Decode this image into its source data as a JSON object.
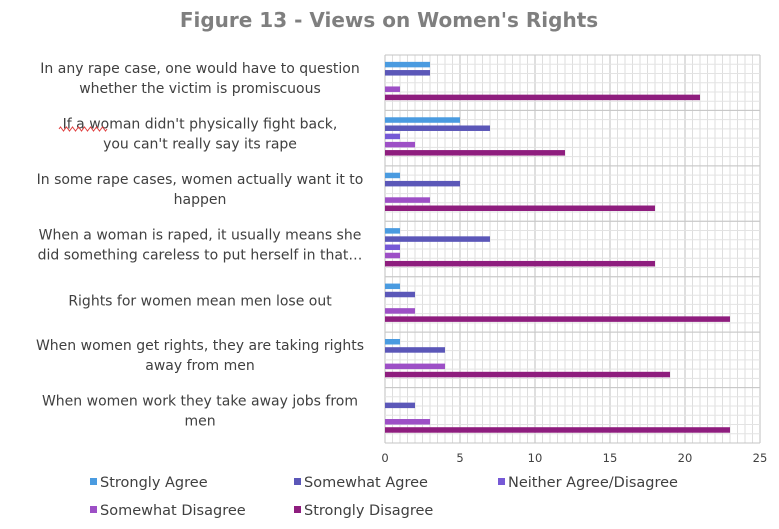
{
  "chart_data": {
    "type": "bar",
    "orientation": "horizontal",
    "title": "Figure 13 - Views on Women's Rights",
    "categories": [
      [
        "In any rape case, one would have to question",
        "whether the victim is promiscuous"
      ],
      [
        "If  a woman didn't physically fight back,",
        "you can't really say its rape"
      ],
      [
        "In some rape cases, women actually want it to",
        "happen"
      ],
      [
        "When a woman is raped, it usually means she",
        "did something careless to put herself in that…"
      ],
      [
        "Rights for women mean men lose out"
      ],
      [
        "When women get rights, they are taking rights",
        "away from men"
      ],
      [
        "When women work they take away jobs from",
        "men"
      ]
    ],
    "series": [
      {
        "name": "Strongly Agree",
        "color": "#4a9be0",
        "values": [
          3,
          5,
          1,
          1,
          1,
          1,
          0
        ]
      },
      {
        "name": "Somewhat Agree",
        "color": "#5b57b8",
        "values": [
          3,
          7,
          5,
          7,
          2,
          4,
          2
        ]
      },
      {
        "name": "Neither Agree/Disagree",
        "color": "#7659d6",
        "values": [
          0,
          1,
          0,
          1,
          0,
          0,
          0
        ]
      },
      {
        "name": "Somewhat Disagree",
        "color": "#9d4fc6",
        "values": [
          1,
          2,
          3,
          1,
          2,
          4,
          3
        ]
      },
      {
        "name": "Strongly Disagree",
        "color": "#8e1d7e",
        "values": [
          21,
          12,
          18,
          18,
          23,
          19,
          23
        ]
      }
    ],
    "xlim": [
      0,
      25
    ],
    "xticks": [
      0,
      5,
      10,
      15,
      20,
      25
    ],
    "minor_gridline_step": 0.5,
    "grid": true,
    "legend_position": "bottom"
  }
}
